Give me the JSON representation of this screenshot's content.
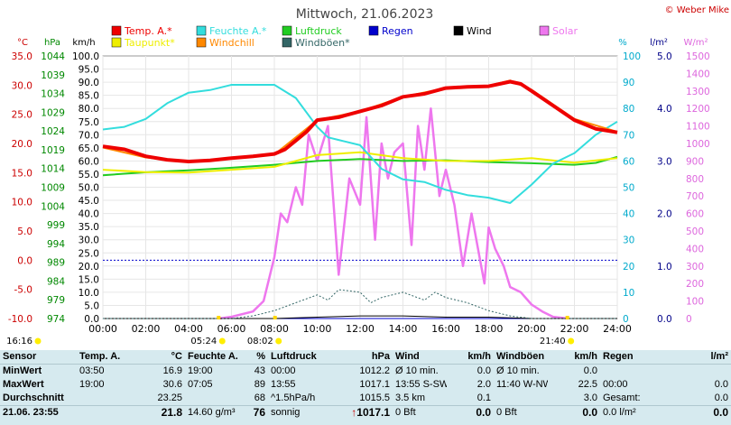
{
  "header": {
    "title": "Mittwoch, 21.06.2023",
    "copyright": "© Weber Mike"
  },
  "legend": [
    {
      "label": "Temp. A.*",
      "color": "#ee0000"
    },
    {
      "label": "Feuchte A.*",
      "color": "#33dddd"
    },
    {
      "label": "Luftdruck",
      "color": "#22cc22"
    },
    {
      "label": "Regen",
      "color": "#0000cc"
    },
    {
      "label": "Wind",
      "color": "#000000"
    },
    {
      "label": "Solar",
      "color": "#ee77ee"
    },
    {
      "label": "Taupunkt*",
      "color": "#eeee00"
    },
    {
      "label": "Windchill",
      "color": "#ff8800"
    },
    {
      "label": "Windböen*",
      "color": "#336666"
    }
  ],
  "axes": {
    "celsius": {
      "unit": "°C",
      "color": "#cc0000",
      "ticks": [
        "35.0",
        "30.0",
        "25.0",
        "20.0",
        "15.0",
        "10.0",
        "5.0",
        "0.0",
        "-5.0",
        "-10.0"
      ]
    },
    "hpa": {
      "unit": "hPa",
      "color": "#008800",
      "ticks": [
        "1044",
        "1039",
        "1034",
        "1029",
        "1024",
        "1019",
        "1014",
        "1009",
        "1004",
        "999",
        "994",
        "989",
        "984",
        "979",
        "974"
      ]
    },
    "kmh": {
      "unit": "km/h",
      "color": "#000000",
      "ticks": [
        "100.0",
        "95.0",
        "90.0",
        "85.0",
        "80.0",
        "75.0",
        "70.0",
        "65.0",
        "60.0",
        "55.0",
        "50.0",
        "45.0",
        "40.0",
        "35.0",
        "30.0",
        "25.0",
        "20.0",
        "15.0",
        "10.0",
        "5.0",
        "0.0"
      ]
    },
    "percent": {
      "unit": "%",
      "color": "#00aacc",
      "ticks": [
        "100",
        "90",
        "80",
        "70",
        "60",
        "50",
        "40",
        "30",
        "20",
        "10",
        "0"
      ]
    },
    "lm2": {
      "unit": "l/m²",
      "color": "#000088",
      "ticks": [
        "5.0",
        "4.0",
        "3.0",
        "2.0",
        "1.0",
        "0.0"
      ]
    },
    "wm2": {
      "unit": "W/m²",
      "color": "#dd66dd",
      "ticks": [
        "1500",
        "1400",
        "1300",
        "1200",
        "1100",
        "1000",
        "900",
        "800",
        "700",
        "600",
        "500",
        "400",
        "300",
        "200",
        "100",
        "0"
      ]
    },
    "x_ticks": [
      "00:00",
      "02:00",
      "04:00",
      "06:00",
      "08:00",
      "10:00",
      "12:00",
      "14:00",
      "16:00",
      "18:00",
      "20:00",
      "22:00",
      "24:00"
    ]
  },
  "sun": {
    "moonrise": "16:16",
    "sunrise": "05:24",
    "noon": "08:02",
    "sunset": "21:40"
  },
  "chart_data": {
    "type": "line",
    "title": "Mittwoch, 21.06.2023",
    "x_unit": "hours",
    "xlim": [
      0,
      24
    ],
    "series": [
      {
        "name": "Temp. A.*",
        "axis": "°C",
        "ylim": [
          -10,
          35
        ],
        "x": [
          0,
          1,
          2,
          3,
          4,
          5,
          6,
          7,
          8,
          8.5,
          9,
          9.5,
          10,
          11,
          12,
          13,
          14,
          15,
          16,
          17,
          18,
          19,
          19.5,
          20,
          21,
          22,
          23,
          24
        ],
        "y": [
          19.5,
          19,
          17.8,
          17.2,
          16.9,
          17.1,
          17.5,
          17.8,
          18.2,
          19,
          20.5,
          22,
          24,
          24.5,
          25.5,
          26.5,
          28,
          28.5,
          29.5,
          29.7,
          29.8,
          30.6,
          30.2,
          29,
          26.5,
          24,
          22.5,
          21.9
        ]
      },
      {
        "name": "Windchill",
        "axis": "°C",
        "ylim": [
          -10,
          35
        ],
        "x": [
          0,
          2,
          4,
          6,
          8,
          10,
          12,
          14,
          16,
          18,
          19,
          20,
          22,
          24
        ],
        "y": [
          19.3,
          17.6,
          16.8,
          17.4,
          18.1,
          24,
          25.5,
          28,
          29.5,
          29.9,
          30.8,
          29.2,
          24.2,
          22
        ]
      },
      {
        "name": "Taupunkt*",
        "axis": "°C",
        "ylim": [
          -10,
          35
        ],
        "x": [
          0,
          2,
          4,
          6,
          8,
          9,
          10,
          12,
          14,
          16,
          18,
          20,
          22,
          24
        ],
        "y": [
          15.5,
          15.1,
          15,
          15.5,
          16,
          17,
          18,
          18.5,
          17.5,
          17,
          17,
          17.5,
          16.7,
          17.5
        ]
      },
      {
        "name": "Feuchte A.*",
        "axis": "%",
        "ylim": [
          0,
          100
        ],
        "x": [
          0,
          1,
          2,
          3,
          4,
          5,
          6,
          7,
          8,
          9,
          10,
          10.5,
          11,
          12,
          13,
          14,
          15,
          16,
          17,
          18,
          19,
          20,
          21,
          22,
          23,
          24
        ],
        "y": [
          72,
          73,
          76,
          82,
          86,
          87,
          89,
          89,
          89,
          84,
          73,
          69,
          68,
          66,
          57,
          53,
          52,
          49,
          47,
          46,
          44,
          51,
          59,
          63,
          70,
          75
        ]
      },
      {
        "name": "Luftdruck",
        "axis": "hPa",
        "ylim": [
          974,
          1044
        ],
        "x": [
          0,
          2,
          4,
          6,
          8,
          10,
          12,
          14,
          16,
          18,
          20,
          22,
          23,
          24
        ],
        "y": [
          1012.2,
          1013,
          1013.5,
          1014.2,
          1015,
          1016,
          1016.5,
          1016,
          1016.2,
          1015.7,
          1015.4,
          1015,
          1015.5,
          1017.1
        ]
      },
      {
        "name": "Solar",
        "axis": "W/m²",
        "ylim": [
          0,
          1500
        ],
        "x": [
          5.4,
          6,
          7,
          7.5,
          8,
          8.3,
          8.6,
          9,
          9.3,
          9.6,
          10,
          10.5,
          11,
          11.5,
          12,
          12.3,
          12.7,
          13,
          13.3,
          13.6,
          14,
          14.4,
          14.7,
          15,
          15.3,
          15.7,
          16,
          16.4,
          16.8,
          17.2,
          17.5,
          17.8,
          18,
          18.3,
          18.7,
          19,
          19.5,
          20,
          20.5,
          21,
          21.7
        ],
        "y": [
          0,
          10,
          40,
          100,
          350,
          600,
          550,
          750,
          650,
          1050,
          900,
          1100,
          250,
          800,
          650,
          1150,
          450,
          1000,
          800,
          950,
          1000,
          420,
          1100,
          850,
          1200,
          700,
          850,
          650,
          300,
          600,
          400,
          200,
          520,
          400,
          300,
          180,
          150,
          80,
          40,
          10,
          0
        ]
      },
      {
        "name": "Wind",
        "axis": "km/h",
        "ylim": [
          0,
          100
        ],
        "x": [
          0,
          6,
          8,
          10,
          12,
          14,
          16,
          18,
          20,
          24
        ],
        "y": [
          0,
          0,
          0,
          0.5,
          1,
          1,
          0.5,
          0.5,
          0,
          0
        ]
      },
      {
        "name": "Windböen*",
        "axis": "km/h",
        "ylim": [
          0,
          100
        ],
        "x": [
          0,
          6,
          7,
          8,
          9,
          10,
          10.5,
          11,
          12,
          12.5,
          13,
          14,
          15,
          15.5,
          16,
          17,
          18,
          19,
          20,
          24
        ],
        "y": [
          0,
          0,
          1,
          3,
          6,
          9,
          7,
          11,
          10,
          6,
          8,
          10,
          7,
          10,
          8,
          6,
          3,
          1,
          0,
          0
        ]
      },
      {
        "name": "Regen",
        "axis": "l/m²",
        "ylim": [
          0,
          5
        ],
        "x": [
          0,
          24
        ],
        "y": [
          0,
          0
        ]
      }
    ],
    "reference_line": {
      "axis": "°C",
      "value": 0.0,
      "color": "#0000cc"
    }
  },
  "stats": {
    "headers": [
      {
        "label": "Sensor",
        "unit": ""
      },
      {
        "label": "Temp. A.",
        "unit": "°C"
      },
      {
        "label": "Feuchte A.",
        "unit": "%"
      },
      {
        "label": "Luftdruck",
        "unit": "hPa"
      },
      {
        "label": "Wind",
        "unit": "km/h"
      },
      {
        "label": "Windböen",
        "unit": "km/h"
      },
      {
        "label": "Regen",
        "unit": "l/m²"
      }
    ],
    "rows": [
      {
        "label": "MinWert",
        "cells": [
          "03:50",
          "16.9",
          "19:00",
          "43",
          "00:00",
          "1012.2",
          "Ø 10 min.",
          "0.0",
          "Ø 10 min.",
          "0.0",
          "",
          ""
        ]
      },
      {
        "label": "MaxWert",
        "cells": [
          "19:00",
          "30.6",
          "07:05",
          "89",
          "13:55",
          "1017.1",
          "13:55  S-SW",
          "2.0",
          "11:40  W-NW",
          "22.5",
          "00:00",
          "0.0"
        ]
      },
      {
        "label": "Durchschnitt",
        "cells": [
          "",
          "23.25",
          "",
          "68",
          "^1.5hPa/h",
          "1015.5",
          "3.5 km",
          "0.1",
          "",
          "3.0",
          "Gesamt:",
          "0.0"
        ]
      },
      {
        "label": "21.06. 23:55",
        "cells": [
          "",
          "21.8",
          "14.60 g/m³",
          "76",
          "sonnig",
          "1017.1",
          "0 Bft",
          "0.0",
          "0 Bft",
          "0.0",
          "0.0 l/m²",
          "0.0"
        ]
      }
    ]
  }
}
